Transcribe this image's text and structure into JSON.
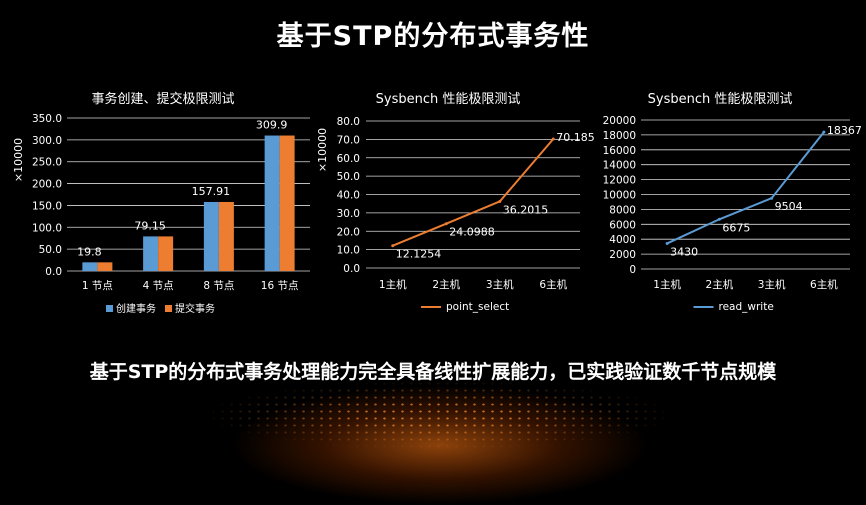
{
  "page": {
    "title": "基于STP的分布式事务性",
    "subtitle": "基于STP的分布式事务处理能力完全具备线性扩展能力，已实践验证数千节点规模"
  },
  "colors": {
    "blue": "#5b9bd5",
    "orange": "#ed7d31",
    "grid": "#d9d9d9",
    "axis_text": "#ffffff"
  },
  "chart_data": [
    {
      "type": "bar",
      "title": "事务创建、提交极限测试",
      "ylabel": "×10000",
      "categories": [
        "1 节点",
        "4 节点",
        "8 节点",
        "16 节点"
      ],
      "series": [
        {
          "name": "创建事务",
          "values": [
            19.8,
            79.15,
            157.91,
            309.9
          ],
          "color": "#5b9bd5"
        },
        {
          "name": "提交事务",
          "values": [
            19.8,
            79.15,
            157.91,
            309.9
          ],
          "color": "#ed7d31"
        }
      ],
      "data_labels": [
        "19.8",
        "79.15",
        "157.91",
        "309.9"
      ],
      "ylim": [
        0,
        350
      ],
      "yticks": [
        "0.0",
        "50.0",
        "100.0",
        "150.0",
        "200.0",
        "250.0",
        "300.0",
        "350.0"
      ],
      "grid": true,
      "legend": "bottom"
    },
    {
      "type": "line",
      "title": "Sysbench 性能极限测试",
      "ylabel": "×10000",
      "categories": [
        "1主机",
        "2主机",
        "3主机",
        "6主机"
      ],
      "series": [
        {
          "name": "point_select",
          "values": [
            12.1254,
            24.0988,
            36.2015,
            70.185
          ],
          "color": "#ed7d31"
        }
      ],
      "data_labels": [
        "12.1254",
        "24.0988",
        "36.2015",
        "70.185"
      ],
      "ylim": [
        0,
        80
      ],
      "yticks": [
        "0.0",
        "10.0",
        "20.0",
        "30.0",
        "40.0",
        "50.0",
        "60.0",
        "70.0",
        "80.0"
      ],
      "grid": true,
      "legend": "bottom"
    },
    {
      "type": "line",
      "title": "Sysbench 性能极限测试",
      "ylabel": "",
      "categories": [
        "1主机",
        "2主机",
        "3主机",
        "6主机"
      ],
      "series": [
        {
          "name": "read_write",
          "values": [
            3430,
            6675,
            9504,
            18367
          ],
          "color": "#5b9bd5"
        }
      ],
      "data_labels": [
        "3430",
        "6675",
        "9504",
        "18367"
      ],
      "ylim": [
        0,
        20000
      ],
      "yticks": [
        "0",
        "2000",
        "4000",
        "6000",
        "8000",
        "10000",
        "12000",
        "14000",
        "16000",
        "18000",
        "20000"
      ],
      "grid": true,
      "legend": "bottom"
    }
  ]
}
